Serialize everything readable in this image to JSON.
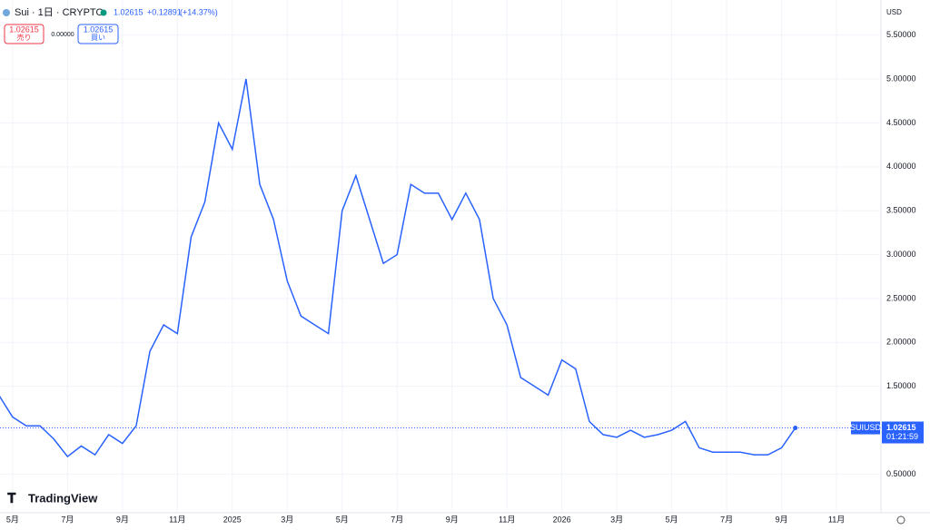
{
  "header": {
    "symbol": "Sui · 1日 · CRYPTO",
    "price": "1.02615",
    "change": "+0.12891",
    "change_pct": "(+14.37%)"
  },
  "trade": {
    "sell_price": "1.02615",
    "sell_label": "売り",
    "spread": "0.00000",
    "buy_price": "1.02615",
    "buy_label": "買い"
  },
  "price_scale": {
    "currency": "USD",
    "symbol_tag": "SUIUSD",
    "price_tag": "1.02615",
    "countdown": "01:21:59"
  },
  "brand": "TradingView",
  "chart_data": {
    "type": "line",
    "categories": [
      null,
      "5月",
      null,
      null,
      null,
      "7月",
      null,
      null,
      null,
      "9月",
      null,
      null,
      null,
      "11月",
      null,
      null,
      null,
      "2025",
      null,
      null,
      null,
      "3月",
      null,
      null,
      null,
      "5月",
      null,
      null,
      null,
      "7月",
      null,
      null,
      null,
      "9月",
      null,
      null,
      null,
      "11月",
      null,
      null,
      null,
      "2026",
      null,
      null,
      null,
      "3月",
      null,
      null,
      null,
      "5月",
      null,
      null,
      null,
      "7月",
      null,
      null,
      null,
      "9月",
      null,
      null,
      null,
      "11月"
    ],
    "series": [
      {
        "name": "SUIUSD",
        "color": "#2962ff",
        "values": [
          1.4,
          1.15,
          1.05,
          1.05,
          0.9,
          0.7,
          0.82,
          0.72,
          0.95,
          0.85,
          1.05,
          1.9,
          2.2,
          2.1,
          3.2,
          3.6,
          4.5,
          4.2,
          5.0,
          3.8,
          3.4,
          2.7,
          2.3,
          2.2,
          2.1,
          3.5,
          3.9,
          3.4,
          2.9,
          3.0,
          3.8,
          3.7,
          3.7,
          3.4,
          3.7,
          3.4,
          2.5,
          2.2,
          1.6,
          1.5,
          1.4,
          1.8,
          1.7,
          1.1,
          0.95,
          0.92,
          1.0,
          0.92,
          0.95,
          1.0,
          1.1,
          0.8,
          0.75,
          0.75,
          0.75,
          0.72,
          0.72,
          0.8,
          1.02615,
          null,
          null,
          null
        ]
      }
    ],
    "ylim": [
      0.06,
      5.9
    ],
    "yticks": [
      {
        "value": 0.5,
        "label": "0.50000"
      },
      {
        "value": 1.0,
        "label": "1.00000"
      },
      {
        "value": 1.5,
        "label": "1.50000"
      },
      {
        "value": 2.0,
        "label": "2.00000"
      },
      {
        "value": 2.5,
        "label": "2.50000"
      },
      {
        "value": 3.0,
        "label": "3.00000"
      },
      {
        "value": 3.5,
        "label": "3.50000"
      },
      {
        "value": 4.0,
        "label": "4.00000"
      },
      {
        "value": 4.5,
        "label": "4.50000"
      },
      {
        "value": 5.0,
        "label": "5.00000"
      },
      {
        "value": 5.5,
        "label": "5.50000"
      }
    ],
    "grid": true
  }
}
